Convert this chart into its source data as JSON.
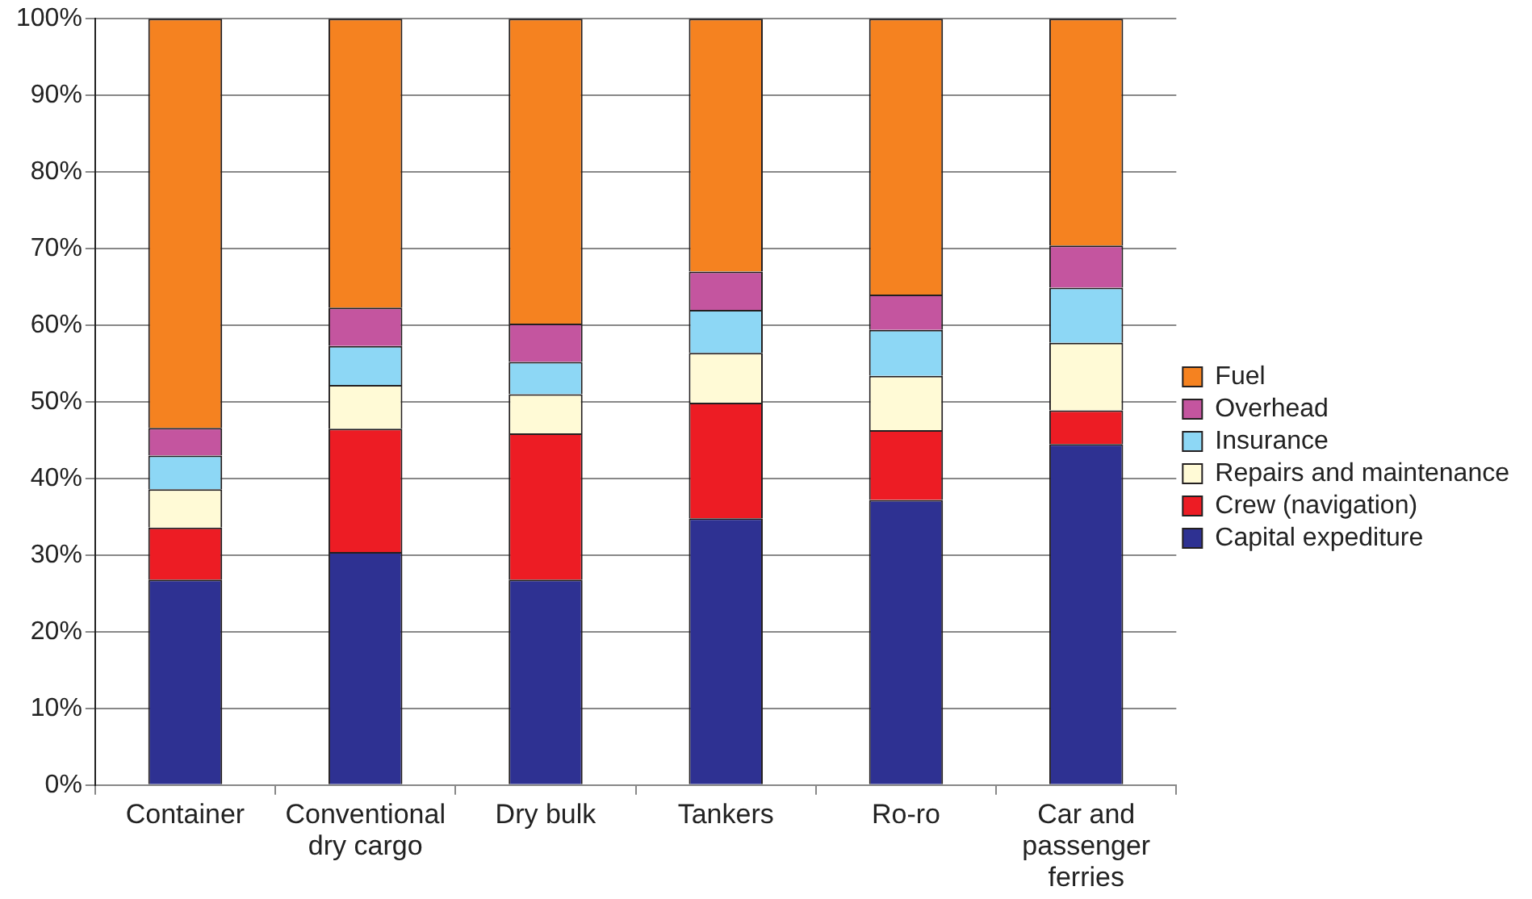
{
  "chart_data": {
    "type": "bar",
    "stacked": true,
    "categories": [
      "Container",
      "Conventional dry cargo",
      "Dry bulk",
      "Tankers",
      "Ro-ro",
      "Car and passenger ferries"
    ],
    "series": [
      {
        "name": "Capital expediture",
        "color": "#2e3192",
        "values": [
          26.8,
          30.4,
          26.8,
          34.8,
          37.2,
          44.5
        ]
      },
      {
        "name": "Crew (navigation)",
        "color": "#ed1c24",
        "values": [
          6.8,
          16.1,
          19.1,
          15.1,
          9.1,
          4.4
        ]
      },
      {
        "name": "Repairs and maintenance",
        "color": "#fffad6",
        "values": [
          5.0,
          5.7,
          5.1,
          6.5,
          7.1,
          8.8
        ]
      },
      {
        "name": "Insurance",
        "color": "#8dd7f5",
        "values": [
          4.4,
          5.1,
          4.2,
          5.6,
          6.0,
          7.2
        ]
      },
      {
        "name": "Overhead",
        "color": "#c4559f",
        "values": [
          3.6,
          5.0,
          5.0,
          5.0,
          4.6,
          5.5
        ]
      },
      {
        "name": "Fuel",
        "color": "#f58220",
        "values": [
          53.4,
          37.7,
          39.8,
          33.0,
          36.0,
          29.6
        ]
      }
    ],
    "ylim": [
      0,
      100
    ],
    "yticks": [
      {
        "value": 0,
        "label": "0%"
      },
      {
        "value": 10,
        "label": "10%"
      },
      {
        "value": 20,
        "label": "20%"
      },
      {
        "value": 30,
        "label": "30%"
      },
      {
        "value": 40,
        "label": "40%"
      },
      {
        "value": 50,
        "label": "50%"
      },
      {
        "value": 60,
        "label": "60%"
      },
      {
        "value": 70,
        "label": "70%"
      },
      {
        "value": 80,
        "label": "80%"
      },
      {
        "value": 90,
        "label": "90%"
      },
      {
        "value": 100,
        "label": "100%"
      }
    ],
    "grid": "y",
    "legend": "right"
  }
}
